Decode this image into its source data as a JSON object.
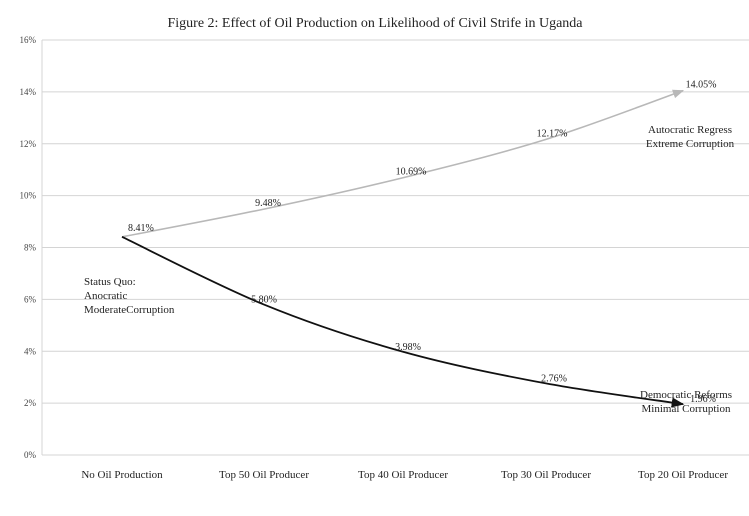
{
  "chart_data": {
    "type": "line",
    "title": "Figure 2: Effect of Oil Production on Likelihood of Civil Strife in Uganda",
    "categories": [
      "No Oil Production",
      "Top 50 Oil Producer",
      "Top 40 Oil Producer",
      "Top 30 Oil Producer",
      "Top 20 Oil Producer"
    ],
    "ylim": [
      0,
      16
    ],
    "yticks": [
      "0%",
      "2%",
      "4%",
      "6%",
      "8%",
      "10%",
      "12%",
      "14%",
      "16%"
    ],
    "grid": true,
    "series": [
      {
        "key": "autocratic",
        "values": [
          8.41,
          9.48,
          10.69,
          12.17,
          14.05
        ],
        "labels": [
          "8.41%",
          "9.48%",
          "10.69%",
          "12.17%",
          "14.05%"
        ],
        "color": "#b8b8b8"
      },
      {
        "key": "democratic",
        "values": [
          8.41,
          5.8,
          3.98,
          2.76,
          1.96
        ],
        "labels": [
          "8.41%",
          "5.80%",
          "3.98%",
          "2.76%",
          "1.96%"
        ],
        "color": "#111111"
      }
    ],
    "annotations": {
      "status_quo": [
        "Status Quo:",
        "Anocratic",
        "ModerateCorruption"
      ],
      "autocratic": [
        "Autocratic Regress",
        "Extreme Corruption"
      ],
      "democratic": [
        "Democratic Reforms",
        "Minimal Corruption"
      ]
    }
  }
}
